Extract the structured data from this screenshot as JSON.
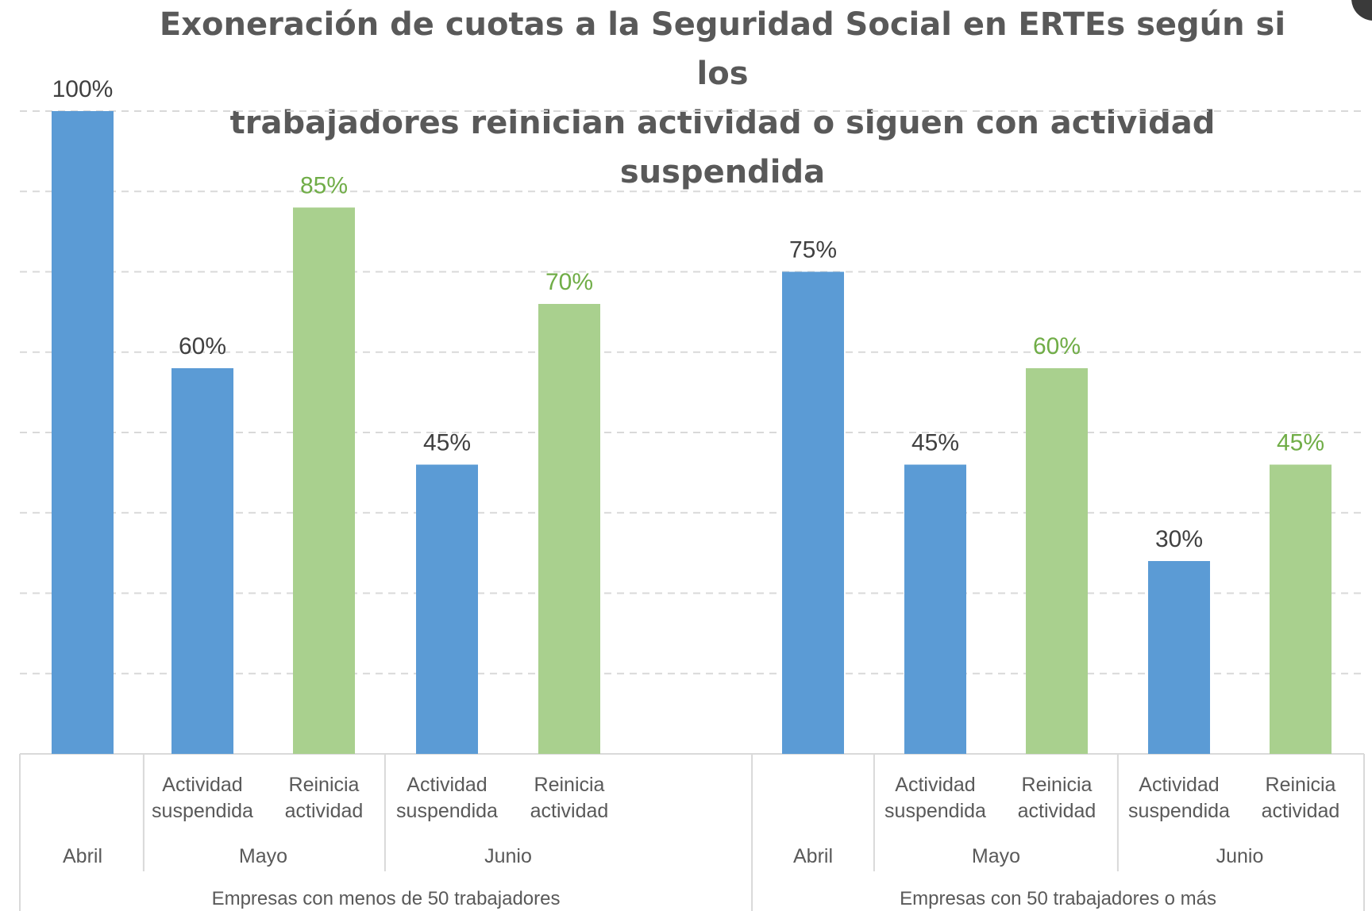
{
  "chart_data": {
    "type": "bar",
    "title_lines": [
      "Exoneración de cuotas a la Seguridad Social en ERTEs según si los",
      "trabajadores reinician actividad o siguen con actividad suspendida"
    ],
    "ylim": [
      0,
      100
    ],
    "gridlines": [
      100,
      87.5,
      75,
      62.5,
      50,
      37.5,
      25,
      12.5
    ],
    "value_suffix": "%",
    "colors": {
      "suspendida": "#5b9bd5",
      "reinicia": "#a9d08e",
      "label_dark": "#404040",
      "label_green": "#70ad47"
    },
    "groups": [
      {
        "name": "Empresas con menos de 50 trabajadores",
        "months": [
          {
            "name": "Abril",
            "bars": [
              {
                "label": "",
                "kind": "suspendida",
                "value": 100
              }
            ]
          },
          {
            "name": "Mayo",
            "bars": [
              {
                "label": "Actividad suspendida",
                "kind": "suspendida",
                "value": 60
              },
              {
                "label": "Reinicia actividad",
                "kind": "reinicia",
                "value": 85
              }
            ]
          },
          {
            "name": "Junio",
            "bars": [
              {
                "label": "Actividad suspendida",
                "kind": "suspendida",
                "value": 45
              },
              {
                "label": "Reinicia actividad",
                "kind": "reinicia",
                "value": 70
              }
            ]
          }
        ]
      },
      {
        "name": "Empresas con 50 trabajadores o más",
        "months": [
          {
            "name": "Abril",
            "bars": [
              {
                "label": "",
                "kind": "suspendida",
                "value": 75
              }
            ]
          },
          {
            "name": "Mayo",
            "bars": [
              {
                "label": "Actividad suspendida",
                "kind": "suspendida",
                "value": 45
              },
              {
                "label": "Reinicia actividad",
                "kind": "reinicia",
                "value": 60
              }
            ]
          },
          {
            "name": "Junio",
            "bars": [
              {
                "label": "Actividad suspendida",
                "kind": "suspendida",
                "value": 30
              },
              {
                "label": "Reinicia actividad",
                "kind": "reinicia",
                "value": 45
              }
            ]
          }
        ]
      }
    ]
  }
}
